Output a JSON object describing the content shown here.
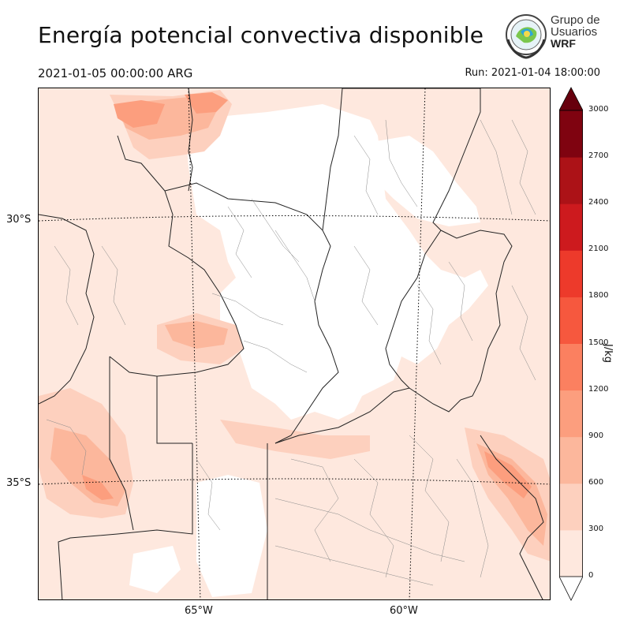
{
  "title": "Energía potencial convectiva disponible",
  "valid_time": "2021-01-05 00:00:00 ARG",
  "run_time": "Run: 2021-01-04 18:00:00",
  "logo": {
    "line1": "Grupo de",
    "line2": "Usuarios",
    "line3": "WRF"
  },
  "map": {
    "lat_labels": [
      "30°S",
      "35°S"
    ],
    "lon_labels": [
      "65°W",
      "60°W"
    ]
  },
  "colorbar": {
    "unit": "J/kg",
    "ticks": [
      "0",
      "300",
      "600",
      "900",
      "1200",
      "1500",
      "1800",
      "2100",
      "2400",
      "2700",
      "3000"
    ],
    "colors": [
      "#fee8de",
      "#fdd0be",
      "#fcb79c",
      "#fc9e7e",
      "#fb8060",
      "#f6583e",
      "#ed3a2b",
      "#cd1a1e",
      "#ac1217",
      "#7f0310"
    ],
    "extend_low_color": "#ffffff",
    "extend_high_color": "#67000d"
  },
  "colors": {
    "province_border": "#222222",
    "department_border": "#888888",
    "graticule": "#000000"
  }
}
